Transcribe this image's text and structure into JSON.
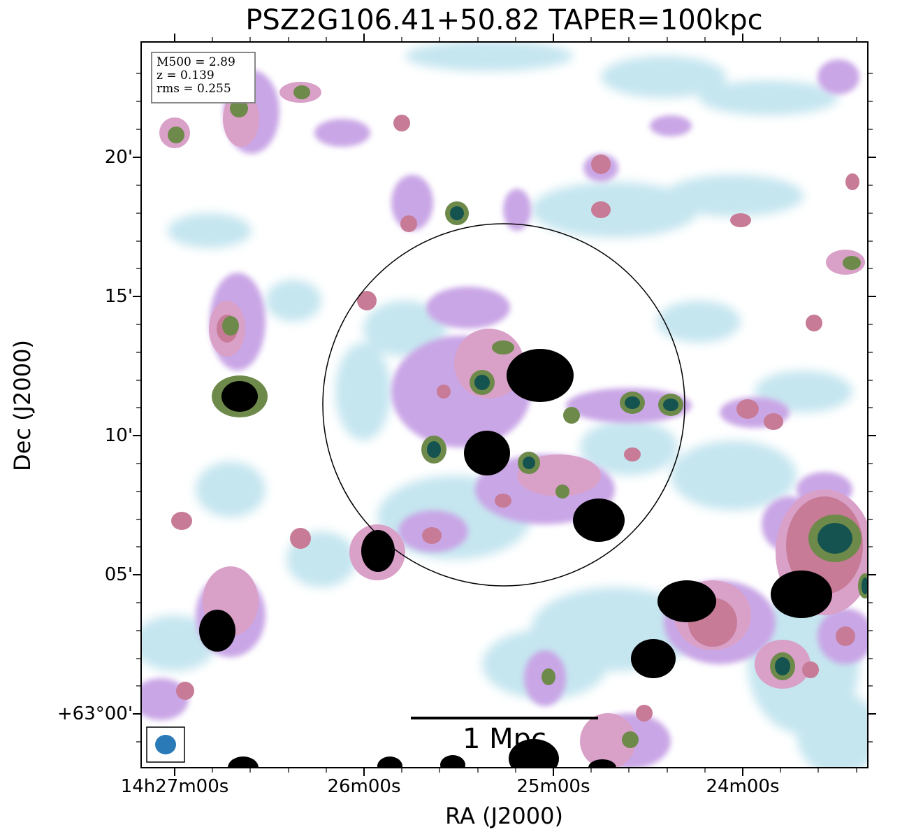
{
  "title": "PSZ2G106.41+50.82 TAPER=100kpc",
  "xlabel": "RA (J2000)",
  "ylabel": "Dec (J2000)",
  "x_ticks": [
    "14h27m00s",
    "26m00s",
    "25m00s",
    "24m00s"
  ],
  "y_ticks": [
    "20'",
    "15'",
    "10'",
    "05'",
    "+63°00'"
  ],
  "info": {
    "m500": "M500 = 2.89",
    "z": "z = 0.139",
    "rms": "rms = 0.255"
  },
  "scale_bar": "1 Mpc",
  "colors": {
    "faint": "#bfe3ee",
    "lavender": "#c9a6e6",
    "pink": "#d9a0c8",
    "rose": "#c77b96",
    "olive": "#6e8a4a",
    "green": "#2a6b4e",
    "teal": "#14534f",
    "core": "#000000",
    "beam": "#2a7ab8"
  }
}
